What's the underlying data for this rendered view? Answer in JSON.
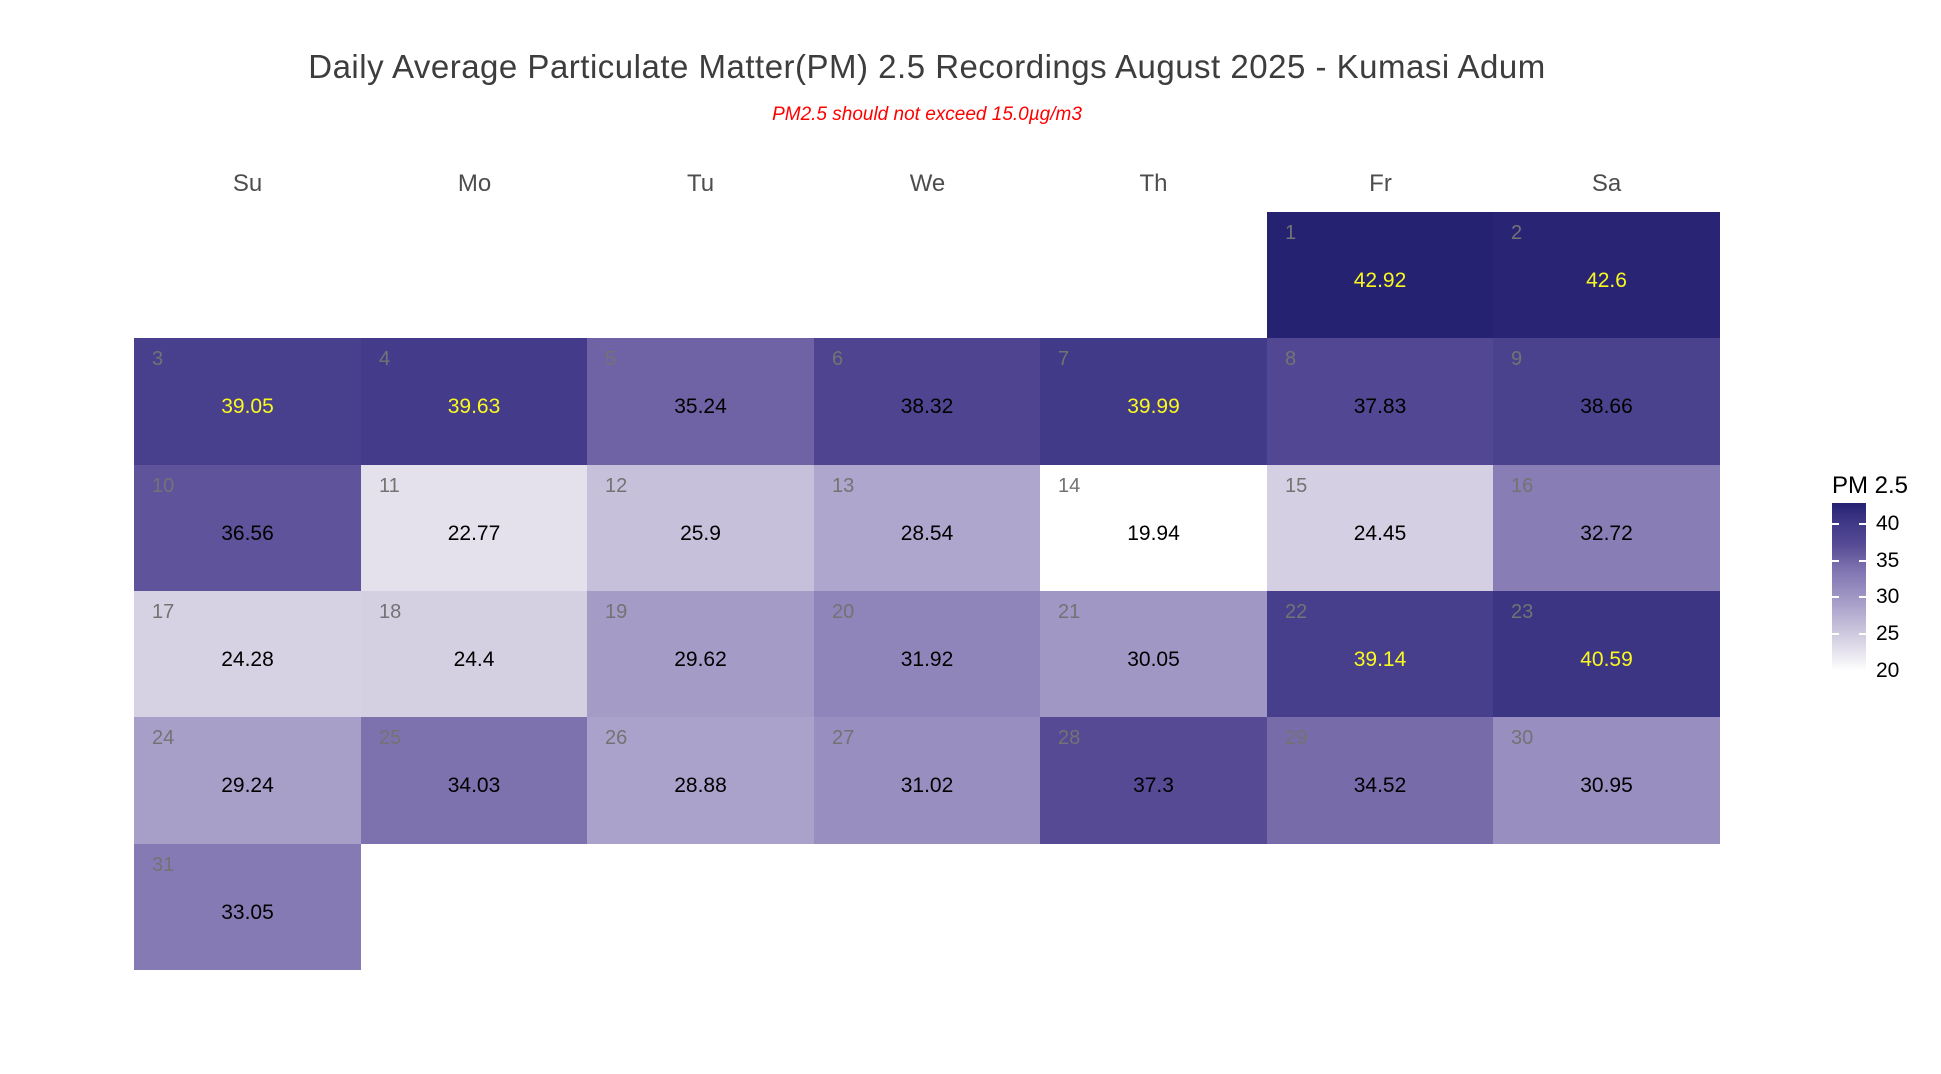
{
  "title": "Daily Average Particulate Matter(PM) 2.5 Recordings August 2025 -  Kumasi Adum",
  "subtitle": "PM2.5 should not exceed 15.0µg/m3",
  "colors": {
    "title_text": "#3d3d3d",
    "subtitle_text": "#ff0000",
    "weekday_header_text": "#4d4d4d",
    "day_number_text": "#737373",
    "value_text_dark_cells": "#f9f920",
    "value_text_light_cells": "#000000",
    "background": "#ffffff"
  },
  "chart_data": {
    "type": "heatmap",
    "subtype": "calendar",
    "title": "Daily Average Particulate Matter(PM) 2.5 Recordings August 2025 -  Kumasi Adum",
    "subtitle": "PM2.5 should not exceed 15.0µg/m3",
    "month": "August 2025",
    "location": "Kumasi Adum",
    "weekday_headers": [
      "Su",
      "Mo",
      "Tu",
      "We",
      "Th",
      "Fr",
      "Sa"
    ],
    "first_day_weekday": "Fr",
    "days": [
      {
        "day": 1,
        "value": 42.92
      },
      {
        "day": 2,
        "value": 42.6
      },
      {
        "day": 3,
        "value": 39.05
      },
      {
        "day": 4,
        "value": 39.63
      },
      {
        "day": 5,
        "value": 35.24
      },
      {
        "day": 6,
        "value": 38.32
      },
      {
        "day": 7,
        "value": 39.99
      },
      {
        "day": 8,
        "value": 37.83
      },
      {
        "day": 9,
        "value": 38.66
      },
      {
        "day": 10,
        "value": 36.56
      },
      {
        "day": 11,
        "value": 22.77
      },
      {
        "day": 12,
        "value": 25.9
      },
      {
        "day": 13,
        "value": 28.54
      },
      {
        "day": 14,
        "value": 19.94
      },
      {
        "day": 15,
        "value": 24.45
      },
      {
        "day": 16,
        "value": 32.72
      },
      {
        "day": 17,
        "value": 24.28
      },
      {
        "day": 18,
        "value": 24.4
      },
      {
        "day": 19,
        "value": 29.62
      },
      {
        "day": 20,
        "value": 31.92
      },
      {
        "day": 21,
        "value": 30.05
      },
      {
        "day": 22,
        "value": 39.14
      },
      {
        "day": 23,
        "value": 40.59
      },
      {
        "day": 24,
        "value": 29.24
      },
      {
        "day": 25,
        "value": 34.03
      },
      {
        "day": 26,
        "value": 28.88
      },
      {
        "day": 27,
        "value": 31.02
      },
      {
        "day": 28,
        "value": 37.3
      },
      {
        "day": 29,
        "value": 34.52
      },
      {
        "day": 30,
        "value": 30.95
      },
      {
        "day": 31,
        "value": 33.05
      }
    ],
    "scale": {
      "min": 19.94,
      "max": 42.92,
      "color_stops": [
        {
          "value": 42.92,
          "color": "#262272"
        },
        {
          "value": 39.99,
          "color": "#413a88"
        },
        {
          "value": 37.3,
          "color": "#564a95"
        },
        {
          "value": 34.03,
          "color": "#7d71ae"
        },
        {
          "value": 29.62,
          "color": "#a49bc7"
        },
        {
          "value": 24.45,
          "color": "#d4cfe2"
        },
        {
          "value": 19.94,
          "color": "#ffffff"
        }
      ],
      "yellow_label_threshold": 39
    },
    "legend": {
      "title": "PM 2.5",
      "ticks": [
        40,
        35,
        30,
        25,
        20
      ],
      "position": "right"
    }
  }
}
